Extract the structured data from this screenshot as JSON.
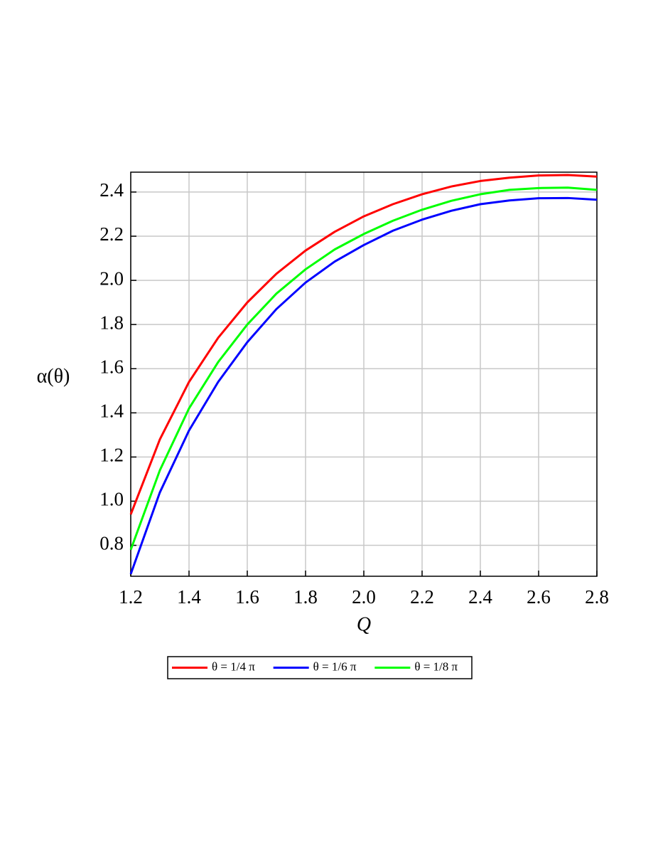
{
  "chart_data": {
    "type": "line",
    "x_label": "Q",
    "y_label": "α(θ)",
    "x": [
      1.2,
      1.3,
      1.4,
      1.5,
      1.6,
      1.7,
      1.8,
      1.9,
      2.0,
      2.1,
      2.2,
      2.3,
      2.4,
      2.5,
      2.6,
      2.7,
      2.8
    ],
    "series": [
      {
        "name": "θ = 1/4 π",
        "color": "#ff0000",
        "values": [
          0.94,
          1.28,
          1.54,
          1.74,
          1.9,
          2.03,
          2.135,
          2.22,
          2.29,
          2.345,
          2.39,
          2.425,
          2.45,
          2.465,
          2.475,
          2.477,
          2.47
        ]
      },
      {
        "name": "θ = 1/6 π",
        "color": "#0000ff",
        "values": [
          0.67,
          1.04,
          1.32,
          1.54,
          1.72,
          1.87,
          1.99,
          2.085,
          2.16,
          2.225,
          2.275,
          2.315,
          2.345,
          2.362,
          2.372,
          2.373,
          2.365
        ]
      },
      {
        "name": "θ = 1/8 π",
        "color": "#00ff00",
        "values": [
          0.78,
          1.14,
          1.42,
          1.63,
          1.8,
          1.94,
          2.05,
          2.14,
          2.21,
          2.27,
          2.32,
          2.36,
          2.39,
          2.41,
          2.418,
          2.42,
          2.41
        ]
      }
    ],
    "xlim": [
      1.2,
      2.8
    ],
    "xticks": [
      1.2,
      1.4,
      1.6,
      1.8,
      {
        "value": 2,
        "label": "2.0"
      },
      2.2,
      2.4,
      2.6,
      2.8
    ],
    "ylim": [
      0.66,
      2.49
    ],
    "yticks": [
      0.8,
      {
        "value": 1,
        "label": "1.0"
      },
      1.2,
      1.4,
      1.6,
      1.8,
      {
        "value": 2,
        "label": "2.0"
      },
      2.2,
      2.4
    ],
    "grid": true,
    "legend": "bottom"
  }
}
